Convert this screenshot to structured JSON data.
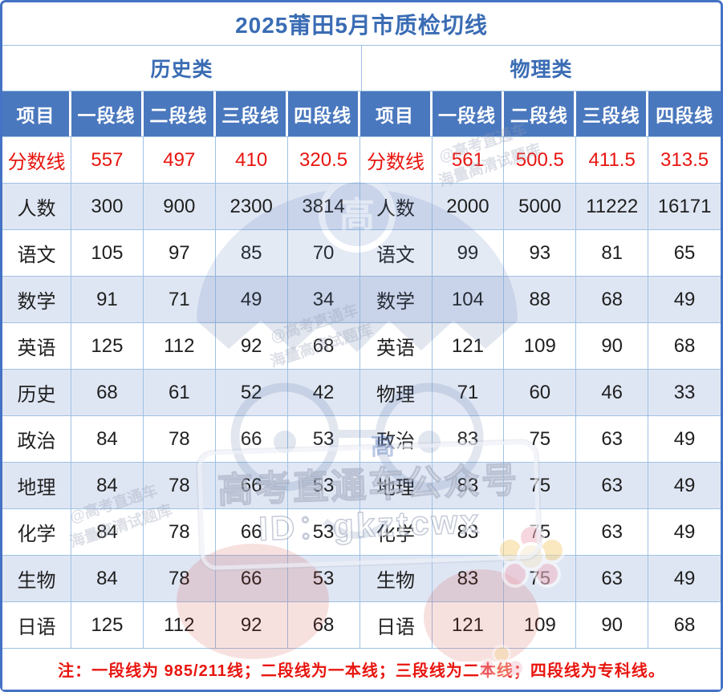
{
  "title": "2025莆田5月市质检切线",
  "note": "注：一段线为 985/211线；二段线为一本线；三段线为二本线；四段线为专科线。",
  "colors": {
    "header_bg": "#4a78be",
    "accent_blue": "#3a6cb4",
    "alt_row_bg": "#dfe6f3",
    "grid_line": "#9fc1e4",
    "outer_border": "#4472c4",
    "highlight_red": "#e8150f"
  },
  "watermark": {
    "sticker_line1": "高考直通车公众号",
    "sticker_line2": "ID：gkztcwx",
    "badge_char": "高",
    "diagonal1": "@高考直通车",
    "diagonal2": "海量高清试题库"
  },
  "chart_data": {
    "type": "table",
    "title": "2025莆田5月市质检切线",
    "sections": [
      {
        "name": "历史类",
        "columns": [
          "项目",
          "一段线",
          "二段线",
          "三段线",
          "四段线"
        ],
        "rows": [
          {
            "label": "分数线",
            "red": true,
            "values": [
              557,
              497,
              410,
              320.5
            ]
          },
          {
            "label": "人数",
            "values": [
              300,
              900,
              2300,
              3814
            ]
          },
          {
            "label": "语文",
            "values": [
              105,
              97,
              85,
              70
            ]
          },
          {
            "label": "数学",
            "values": [
              91,
              71,
              49,
              34
            ]
          },
          {
            "label": "英语",
            "values": [
              125,
              112,
              92,
              68
            ]
          },
          {
            "label": "历史",
            "values": [
              68,
              61,
              52,
              42
            ]
          },
          {
            "label": "政治",
            "values": [
              84,
              78,
              66,
              53
            ]
          },
          {
            "label": "地理",
            "values": [
              84,
              78,
              66,
              53
            ]
          },
          {
            "label": "化学",
            "values": [
              84,
              78,
              66,
              53
            ]
          },
          {
            "label": "生物",
            "values": [
              84,
              78,
              66,
              53
            ]
          },
          {
            "label": "日语",
            "values": [
              125,
              112,
              92,
              68
            ]
          }
        ]
      },
      {
        "name": "物理类",
        "columns": [
          "项目",
          "一段线",
          "二段线",
          "三段线",
          "四段线"
        ],
        "rows": [
          {
            "label": "分数线",
            "red": true,
            "values": [
              561,
              500.5,
              411.5,
              313.5
            ]
          },
          {
            "label": "人数",
            "values": [
              2000,
              5000,
              11222,
              16171
            ]
          },
          {
            "label": "语文",
            "values": [
              99,
              93,
              81,
              65
            ]
          },
          {
            "label": "数学",
            "values": [
              104,
              88,
              68,
              49
            ]
          },
          {
            "label": "英语",
            "values": [
              121,
              109,
              90,
              68
            ]
          },
          {
            "label": "物理",
            "values": [
              71,
              60,
              46,
              33
            ]
          },
          {
            "label": "政治",
            "values": [
              83,
              75,
              63,
              49
            ]
          },
          {
            "label": "地理",
            "values": [
              83,
              75,
              63,
              49
            ]
          },
          {
            "label": "化学",
            "values": [
              83,
              75,
              63,
              49
            ]
          },
          {
            "label": "生物",
            "values": [
              83,
              75,
              63,
              49
            ]
          },
          {
            "label": "日语",
            "values": [
              121,
              109,
              90,
              68
            ]
          }
        ]
      }
    ]
  }
}
